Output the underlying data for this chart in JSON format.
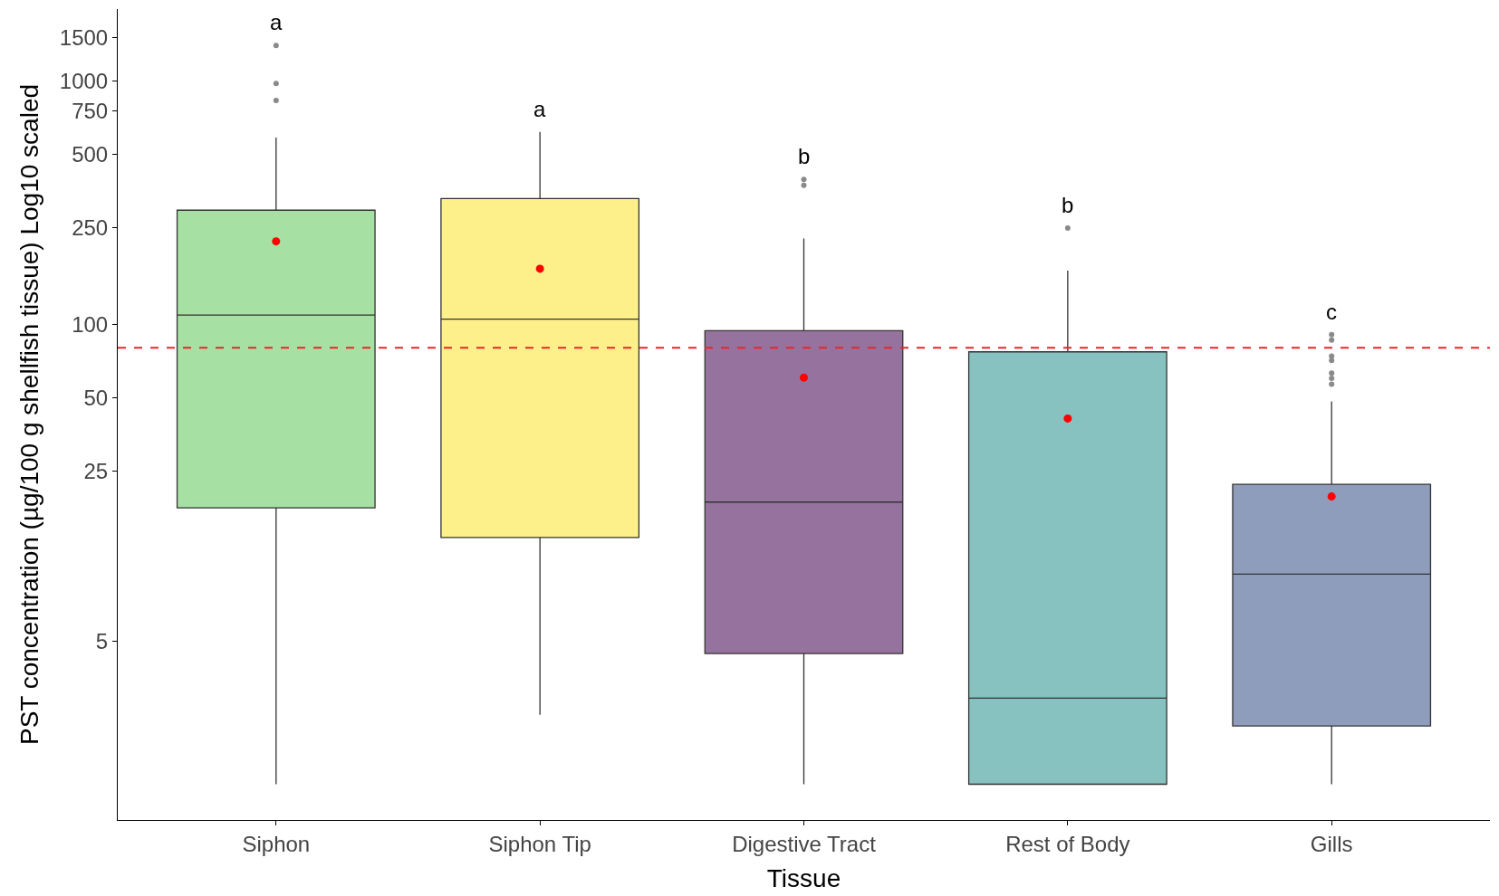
{
  "chart_data": {
    "type": "box",
    "xlabel": "Tissue",
    "ylabel": "PST concentration (µg/100 g shellfish tissue) Log10 scaled",
    "categories": [
      "Siphon",
      "Siphon Tip",
      "Digestive Tract",
      "Rest of Body",
      "Gills"
    ],
    "colors": [
      "#a6e0a3",
      "#fdf08a",
      "#96739e",
      "#87c2c0",
      "#8f9dbd"
    ],
    "boxes": [
      {
        "low": 1.29,
        "q1": 17.6,
        "median": 109,
        "q3": 294,
        "high": 584,
        "mean": 219,
        "outliers": [
          1397,
          975,
          830
        ]
      },
      {
        "low": 2.49,
        "q1": 13.3,
        "median": 105,
        "q3": 328,
        "high": 616,
        "mean": 169
      },
      {
        "low": 1.29,
        "q1": 4.44,
        "median": 18.6,
        "q3": 94,
        "high": 225,
        "mean": 60.4,
        "outliers": [
          393,
          372
        ]
      },
      {
        "low": 1.29,
        "q1": 1.29,
        "median": 2.91,
        "q3": 77,
        "high": 166,
        "mean": 41,
        "outliers": [
          248
        ]
      },
      {
        "low": 1.29,
        "q1": 2.24,
        "median": 9.4,
        "q3": 22,
        "high": 48.2,
        "mean": 19.6,
        "outliers": [
          90.6,
          86,
          74,
          71,
          63,
          60,
          56.7
        ]
      }
    ],
    "log": "y",
    "ylim": [
      0.92,
      1970
    ],
    "yticks": [
      5,
      25,
      50,
      100,
      250,
      500,
      750,
      1000,
      1500
    ],
    "ref_lines": [
      {
        "axis": "y",
        "value": 80,
        "color": "#e8262a",
        "line_style": "dashed"
      }
    ],
    "annotations": [
      "a",
      "a",
      "b",
      "b",
      "c"
    ]
  }
}
